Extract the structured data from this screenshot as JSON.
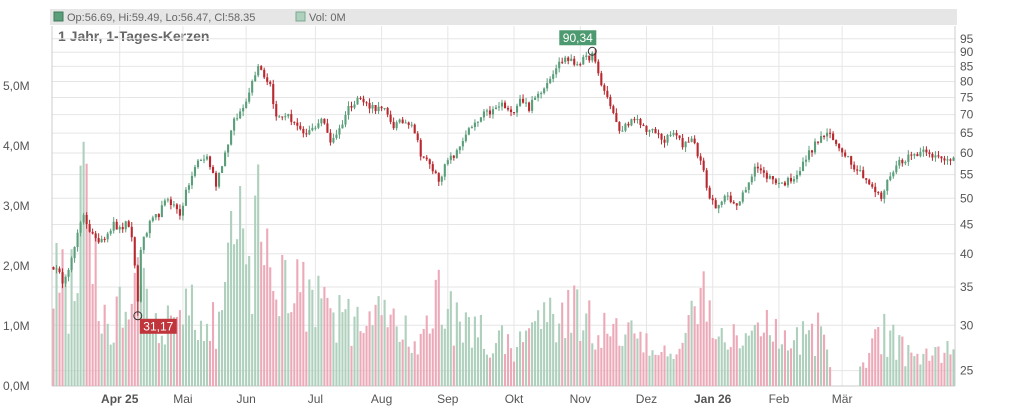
{
  "header": {
    "ohlc_label": "Op:56.69, Hi:59.49, Lo:56.47, Cl:58.35",
    "vol_label": "Vol: 0M"
  },
  "chart_data": {
    "type": "candlestick",
    "title": "1 Jahr, 1-Tages-Kerzen",
    "price_axis": {
      "scale": "log",
      "range": [
        23.5,
        100
      ],
      "ticks": [
        25,
        30,
        35,
        40,
        45,
        50,
        55,
        60,
        65,
        70,
        75,
        80,
        85,
        90,
        95
      ]
    },
    "volume_axis": {
      "range": [
        0,
        6000000
      ],
      "ticks": [
        {
          "value": 0,
          "label": "0,0M"
        },
        {
          "value": 1000000,
          "label": "1,0M"
        },
        {
          "value": 2000000,
          "label": "2,0M"
        },
        {
          "value": 3000000,
          "label": "3,0M"
        },
        {
          "value": 4000000,
          "label": "4,0M"
        },
        {
          "value": 5000000,
          "label": "5,0M"
        }
      ]
    },
    "time_axis": {
      "labels": [
        "Apr 25",
        "Mai",
        "Jun",
        "Jul",
        "Aug",
        "Sep",
        "Okt",
        "Nov",
        "Dez",
        "Jan 26",
        "Feb",
        "Mär"
      ],
      "bold_labels": [
        "Apr 25",
        "Jan 26"
      ]
    },
    "annotations": [
      {
        "label": "90,34",
        "day": 179,
        "value": 90.34,
        "type": "high"
      },
      {
        "label": "31,17",
        "day": 28,
        "value": 31.17,
        "type": "low"
      }
    ],
    "anchors": [
      [
        0,
        38
      ],
      [
        3,
        36
      ],
      [
        6,
        39
      ],
      [
        8,
        43
      ],
      [
        10,
        47
      ],
      [
        12,
        44
      ],
      [
        14,
        42
      ],
      [
        17,
        43
      ],
      [
        20,
        45
      ],
      [
        22,
        44
      ],
      [
        24,
        45
      ],
      [
        26,
        43
      ],
      [
        28,
        33
      ],
      [
        29,
        41
      ],
      [
        32,
        45
      ],
      [
        35,
        47
      ],
      [
        38,
        50
      ],
      [
        42,
        47
      ],
      [
        45,
        53
      ],
      [
        48,
        58
      ],
      [
        51,
        59
      ],
      [
        54,
        53
      ],
      [
        57,
        60
      ],
      [
        60,
        68
      ],
      [
        63,
        72
      ],
      [
        66,
        80
      ],
      [
        68,
        86
      ],
      [
        70,
        82
      ],
      [
        72,
        79
      ],
      [
        74,
        69
      ],
      [
        77,
        70
      ],
      [
        80,
        68
      ],
      [
        83,
        64
      ],
      [
        86,
        66
      ],
      [
        89,
        69
      ],
      [
        92,
        63
      ],
      [
        95,
        66
      ],
      [
        98,
        72
      ],
      [
        101,
        75
      ],
      [
        104,
        73
      ],
      [
        107,
        72
      ],
      [
        110,
        71
      ],
      [
        113,
        67
      ],
      [
        116,
        68
      ],
      [
        119,
        68
      ],
      [
        122,
        60
      ],
      [
        125,
        57
      ],
      [
        128,
        54
      ],
      [
        131,
        58
      ],
      [
        134,
        60
      ],
      [
        137,
        65
      ],
      [
        140,
        67
      ],
      [
        143,
        70
      ],
      [
        146,
        71
      ],
      [
        149,
        73
      ],
      [
        152,
        70
      ],
      [
        155,
        75
      ],
      [
        158,
        72
      ],
      [
        161,
        76
      ],
      [
        164,
        80
      ],
      [
        167,
        85
      ],
      [
        170,
        88
      ],
      [
        173,
        86
      ],
      [
        176,
        87
      ],
      [
        179,
        89
      ],
      [
        182,
        79
      ],
      [
        185,
        73
      ],
      [
        188,
        65
      ],
      [
        191,
        68
      ],
      [
        194,
        68
      ],
      [
        197,
        66
      ],
      [
        200,
        65
      ],
      [
        203,
        63
      ],
      [
        206,
        65
      ],
      [
        209,
        62
      ],
      [
        212,
        64
      ],
      [
        215,
        58
      ],
      [
        218,
        50
      ],
      [
        221,
        48
      ],
      [
        224,
        51
      ],
      [
        227,
        48
      ],
      [
        230,
        52
      ],
      [
        233,
        57
      ],
      [
        236,
        55
      ],
      [
        239,
        54
      ],
      [
        242,
        53
      ],
      [
        245,
        54
      ],
      [
        248,
        56
      ],
      [
        251,
        60
      ],
      [
        254,
        63
      ],
      [
        257,
        65
      ],
      [
        260,
        62
      ],
      [
        263,
        60
      ],
      [
        266,
        57
      ],
      [
        269,
        55
      ],
      [
        272,
        52
      ],
      [
        275,
        50
      ],
      [
        278,
        55
      ],
      [
        281,
        58
      ],
      [
        284,
        59
      ],
      [
        287,
        60
      ],
      [
        290,
        61
      ],
      [
        293,
        59
      ],
      [
        296,
        58
      ],
      [
        299,
        59
      ]
    ],
    "volume_profile": [
      [
        0,
        1.7
      ],
      [
        5,
        1.5
      ],
      [
        10,
        3.2
      ],
      [
        13,
        2.5
      ],
      [
        15,
        1.3
      ],
      [
        20,
        1.1
      ],
      [
        26,
        1.4
      ],
      [
        28,
        2.6
      ],
      [
        30,
        1.7
      ],
      [
        33,
        1.0
      ],
      [
        37,
        0.9
      ],
      [
        40,
        1.0
      ],
      [
        45,
        1.3
      ],
      [
        50,
        1.2
      ],
      [
        55,
        1.1
      ],
      [
        58,
        2.3
      ],
      [
        60,
        1.8
      ],
      [
        63,
        2.6
      ],
      [
        66,
        2.0
      ],
      [
        69,
        2.9
      ],
      [
        72,
        2.4
      ],
      [
        75,
        1.6
      ],
      [
        78,
        1.5
      ],
      [
        81,
        1.9
      ],
      [
        84,
        1.3
      ],
      [
        87,
        1.4
      ],
      [
        90,
        1.2
      ],
      [
        95,
        1.1
      ],
      [
        100,
        1.0
      ],
      [
        105,
        1.2
      ],
      [
        110,
        1.0
      ],
      [
        115,
        0.9
      ],
      [
        120,
        0.8
      ],
      [
        125,
        1.3
      ],
      [
        130,
        1.4
      ],
      [
        135,
        1.0
      ],
      [
        140,
        0.9
      ],
      [
        145,
        0.8
      ],
      [
        150,
        0.7
      ],
      [
        155,
        0.7
      ],
      [
        160,
        1.0
      ],
      [
        164,
        1.6
      ],
      [
        167,
        1.3
      ],
      [
        170,
        1.1
      ],
      [
        175,
        1.2
      ],
      [
        180,
        1.0
      ],
      [
        185,
        0.9
      ],
      [
        190,
        0.9
      ],
      [
        195,
        0.7
      ],
      [
        200,
        0.6
      ],
      [
        205,
        0.6
      ],
      [
        210,
        0.8
      ],
      [
        213,
        1.3
      ],
      [
        216,
        1.5
      ],
      [
        219,
        1.1
      ],
      [
        222,
        0.9
      ],
      [
        227,
        0.7
      ],
      [
        232,
        1.0
      ],
      [
        236,
        0.9
      ],
      [
        240,
        0.8
      ],
      [
        245,
        0.6
      ],
      [
        250,
        0.8
      ],
      [
        255,
        0.9
      ],
      [
        259,
        0.0
      ],
      [
        266,
        0.0
      ],
      [
        268,
        0.5
      ],
      [
        272,
        0.6
      ],
      [
        276,
        0.9
      ],
      [
        280,
        0.7
      ],
      [
        285,
        0.5
      ],
      [
        290,
        0.5
      ],
      [
        295,
        0.5
      ],
      [
        299,
        0.7
      ]
    ],
    "no_volume_days": [
      259,
      260,
      261,
      262,
      263,
      264,
      265,
      266,
      267
    ],
    "colors": {
      "up": "#5a9e7a",
      "down": "#b8282e",
      "volume_up": "#aed0bd",
      "volume_down": "#ecaab8",
      "grid": "#e6e6e6",
      "axis_text": "#555555",
      "header_bg": "#e6e6e6",
      "high_label_bg": "#4e9a70",
      "low_label_bg": "#c0353b"
    }
  }
}
